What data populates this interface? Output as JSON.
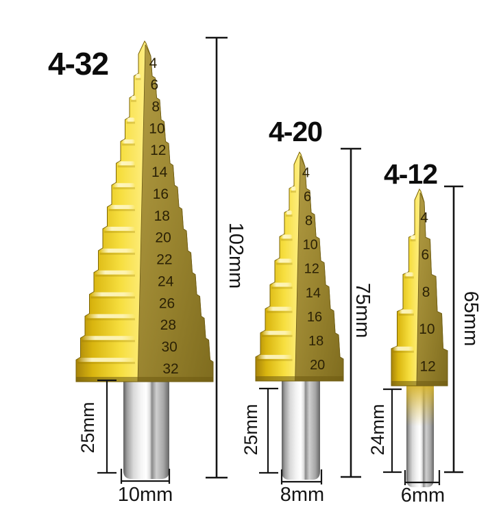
{
  "title": "HSS titanium coated step drill bit set product image",
  "colors": {
    "background": "#ffffff",
    "gold_bright": "#f6de3e",
    "gold_dark": "#a8840a",
    "face_olive": "#9a8530",
    "steel": "#d6d6d6",
    "dimension_line": "#141414",
    "engraving": "#2b2105"
  },
  "drills": [
    {
      "label": "4-32",
      "steps": [
        "4",
        "6",
        "8",
        "10",
        "12",
        "14",
        "16",
        "18",
        "20",
        "22",
        "24",
        "26",
        "28",
        "30",
        "32"
      ],
      "total_length": "102mm",
      "shank_length": "25mm",
      "shank_diameter": "10mm"
    },
    {
      "label": "4-20",
      "steps": [
        "4",
        "6",
        "8",
        "10",
        "12",
        "14",
        "16",
        "18",
        "20"
      ],
      "total_length": "75mm",
      "shank_length": "25mm",
      "shank_diameter": "8mm"
    },
    {
      "label": "4-12",
      "steps": [
        "4",
        "6",
        "8",
        "10",
        "12"
      ],
      "total_length": "65mm",
      "shank_length": "24mm",
      "shank_diameter": "6mm"
    }
  ]
}
